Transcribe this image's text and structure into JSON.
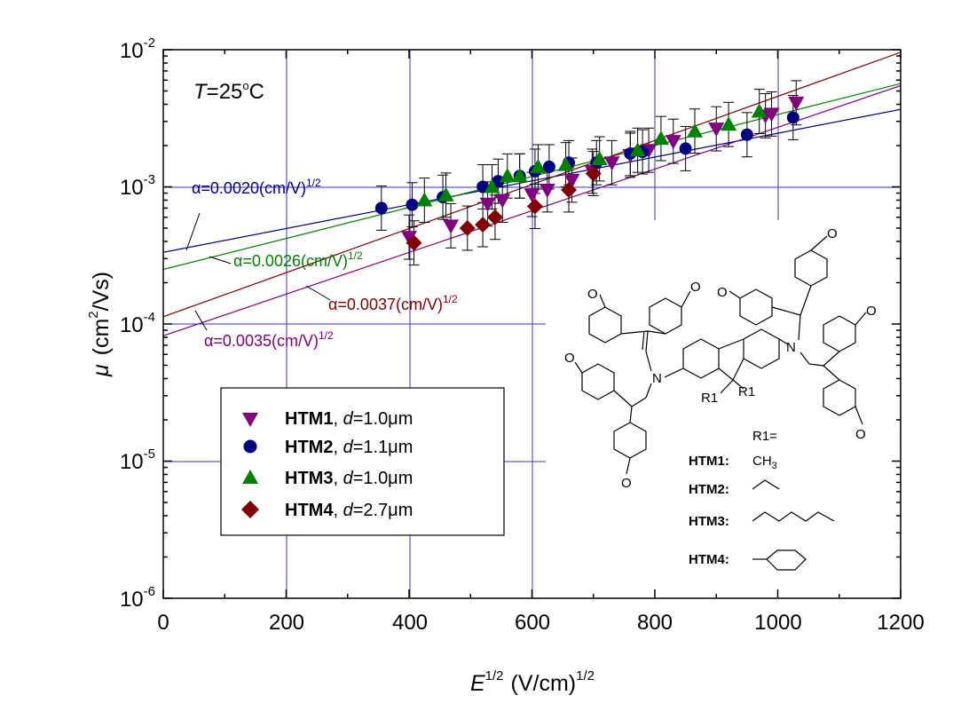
{
  "chart_data": {
    "type": "scatter",
    "xlabel": {
      "base": "E",
      "sup": "1/2",
      "units": "(V/cm)",
      "units_sup": "1/2"
    },
    "ylabel": {
      "symbol": "μ",
      "units_a": "(cm",
      "units_sup": "2",
      "units_b": "/Vs)"
    },
    "xlim": [
      0,
      1200
    ],
    "ylim": [
      1e-06,
      0.01
    ],
    "yscale": "log",
    "x_ticks": [
      "0",
      "200",
      "400",
      "600",
      "800",
      "1000",
      "1200"
    ],
    "y_ticks": [
      {
        "base": "10",
        "exp": "-6"
      },
      {
        "base": "10",
        "exp": "-5"
      },
      {
        "base": "10",
        "exp": "-4"
      },
      {
        "base": "10",
        "exp": "-3"
      },
      {
        "base": "10",
        "exp": "-2"
      }
    ],
    "temperature": {
      "T": "T",
      "eq": "=25",
      "sup": "o",
      "unit": "C"
    },
    "series": [
      {
        "id": "HTM1",
        "marker": "triangle-down",
        "color": "#800080",
        "points": [
          [
            400,
            0.00043
          ],
          [
            468,
            0.00052
          ],
          [
            528,
            0.00075
          ],
          [
            552,
            0.0008
          ],
          [
            600,
            0.00088
          ],
          [
            625,
            0.00095
          ],
          [
            665,
            0.00112
          ],
          [
            698,
            0.0013
          ],
          [
            730,
            0.0015
          ],
          [
            760,
            0.0017
          ],
          [
            790,
            0.00185
          ],
          [
            830,
            0.00215
          ],
          [
            900,
            0.00265
          ],
          [
            980,
            0.0033
          ],
          [
            990,
            0.0034
          ],
          [
            1030,
            0.0041
          ]
        ]
      },
      {
        "id": "HTM2",
        "marker": "circle",
        "color": "#000080",
        "points": [
          [
            355,
            0.0007
          ],
          [
            405,
            0.00074
          ],
          [
            455,
            0.00084
          ],
          [
            520,
            0.001
          ],
          [
            545,
            0.0011
          ],
          [
            580,
            0.0012
          ],
          [
            605,
            0.0013
          ],
          [
            628,
            0.0014
          ],
          [
            660,
            0.0015
          ],
          [
            705,
            0.0015
          ],
          [
            760,
            0.00175
          ],
          [
            780,
            0.0018
          ],
          [
            850,
            0.0019
          ],
          [
            950,
            0.0024
          ],
          [
            1025,
            0.0032
          ]
        ]
      },
      {
        "id": "HTM3",
        "marker": "triangle-up",
        "color": "#008000",
        "points": [
          [
            425,
            0.0008
          ],
          [
            460,
            0.00087
          ],
          [
            535,
            0.001
          ],
          [
            560,
            0.0012
          ],
          [
            580,
            0.0012
          ],
          [
            610,
            0.0014
          ],
          [
            655,
            0.00145
          ],
          [
            710,
            0.0016
          ],
          [
            772,
            0.00185
          ],
          [
            810,
            0.00225
          ],
          [
            865,
            0.00255
          ],
          [
            920,
            0.00285
          ],
          [
            970,
            0.00355
          ]
        ]
      },
      {
        "id": "HTM4",
        "marker": "diamond",
        "color": "#800000",
        "points": [
          [
            408,
            0.00039
          ],
          [
            495,
            0.0005
          ],
          [
            520,
            0.00053
          ],
          [
            540,
            0.0006
          ],
          [
            605,
            0.00072
          ],
          [
            660,
            0.00095
          ],
          [
            700,
            0.00125
          ]
        ]
      }
    ],
    "fits": [
      {
        "series": "HTM2",
        "color": "#000080",
        "y0": 0.000333,
        "alpha": 0.002,
        "label": "α=0.0020(cm/V)",
        "label_sup": "1/2"
      },
      {
        "series": "HTM3",
        "color": "#008000",
        "y0": 0.00025,
        "alpha": 0.0026,
        "label": "α=0.0026(cm/V)",
        "label_sup": "1/2"
      },
      {
        "series": "HTM4",
        "color": "#800000",
        "y0": 0.000113,
        "alpha": 0.0037,
        "label": "α=0.0037(cm/V)",
        "label_sup": "1/2"
      },
      {
        "series": "HTM1",
        "color": "#800080",
        "y0": 8.2e-05,
        "alpha": 0.0035,
        "label": "α=0.0035(cm/V)",
        "label_sup": "1/2"
      }
    ],
    "legend": [
      {
        "id": "HTM1",
        "name": "HTM1",
        "sep": ", ",
        "var": "d",
        "value": "=1.0μm"
      },
      {
        "id": "HTM2",
        "name": "HTM2",
        "sep": ", ",
        "var": "d",
        "value": "=1.1μm"
      },
      {
        "id": "HTM3",
        "name": "HTM3",
        "sep": ", ",
        "var": "d",
        "value": "=1.0μm"
      },
      {
        "id": "HTM4",
        "name": "HTM4",
        "sep": ", ",
        "var": "d",
        "value": "=2.7μm"
      }
    ]
  },
  "structure": {
    "atom_O": "O",
    "atom_N": "N",
    "substituent": "R1",
    "r1_header": "R1=",
    "entries": [
      {
        "name": "HTM1:",
        "group": "CH",
        "sub": "3"
      },
      {
        "name": "HTM2:"
      },
      {
        "name": "HTM3:"
      },
      {
        "name": "HTM4:"
      }
    ]
  }
}
